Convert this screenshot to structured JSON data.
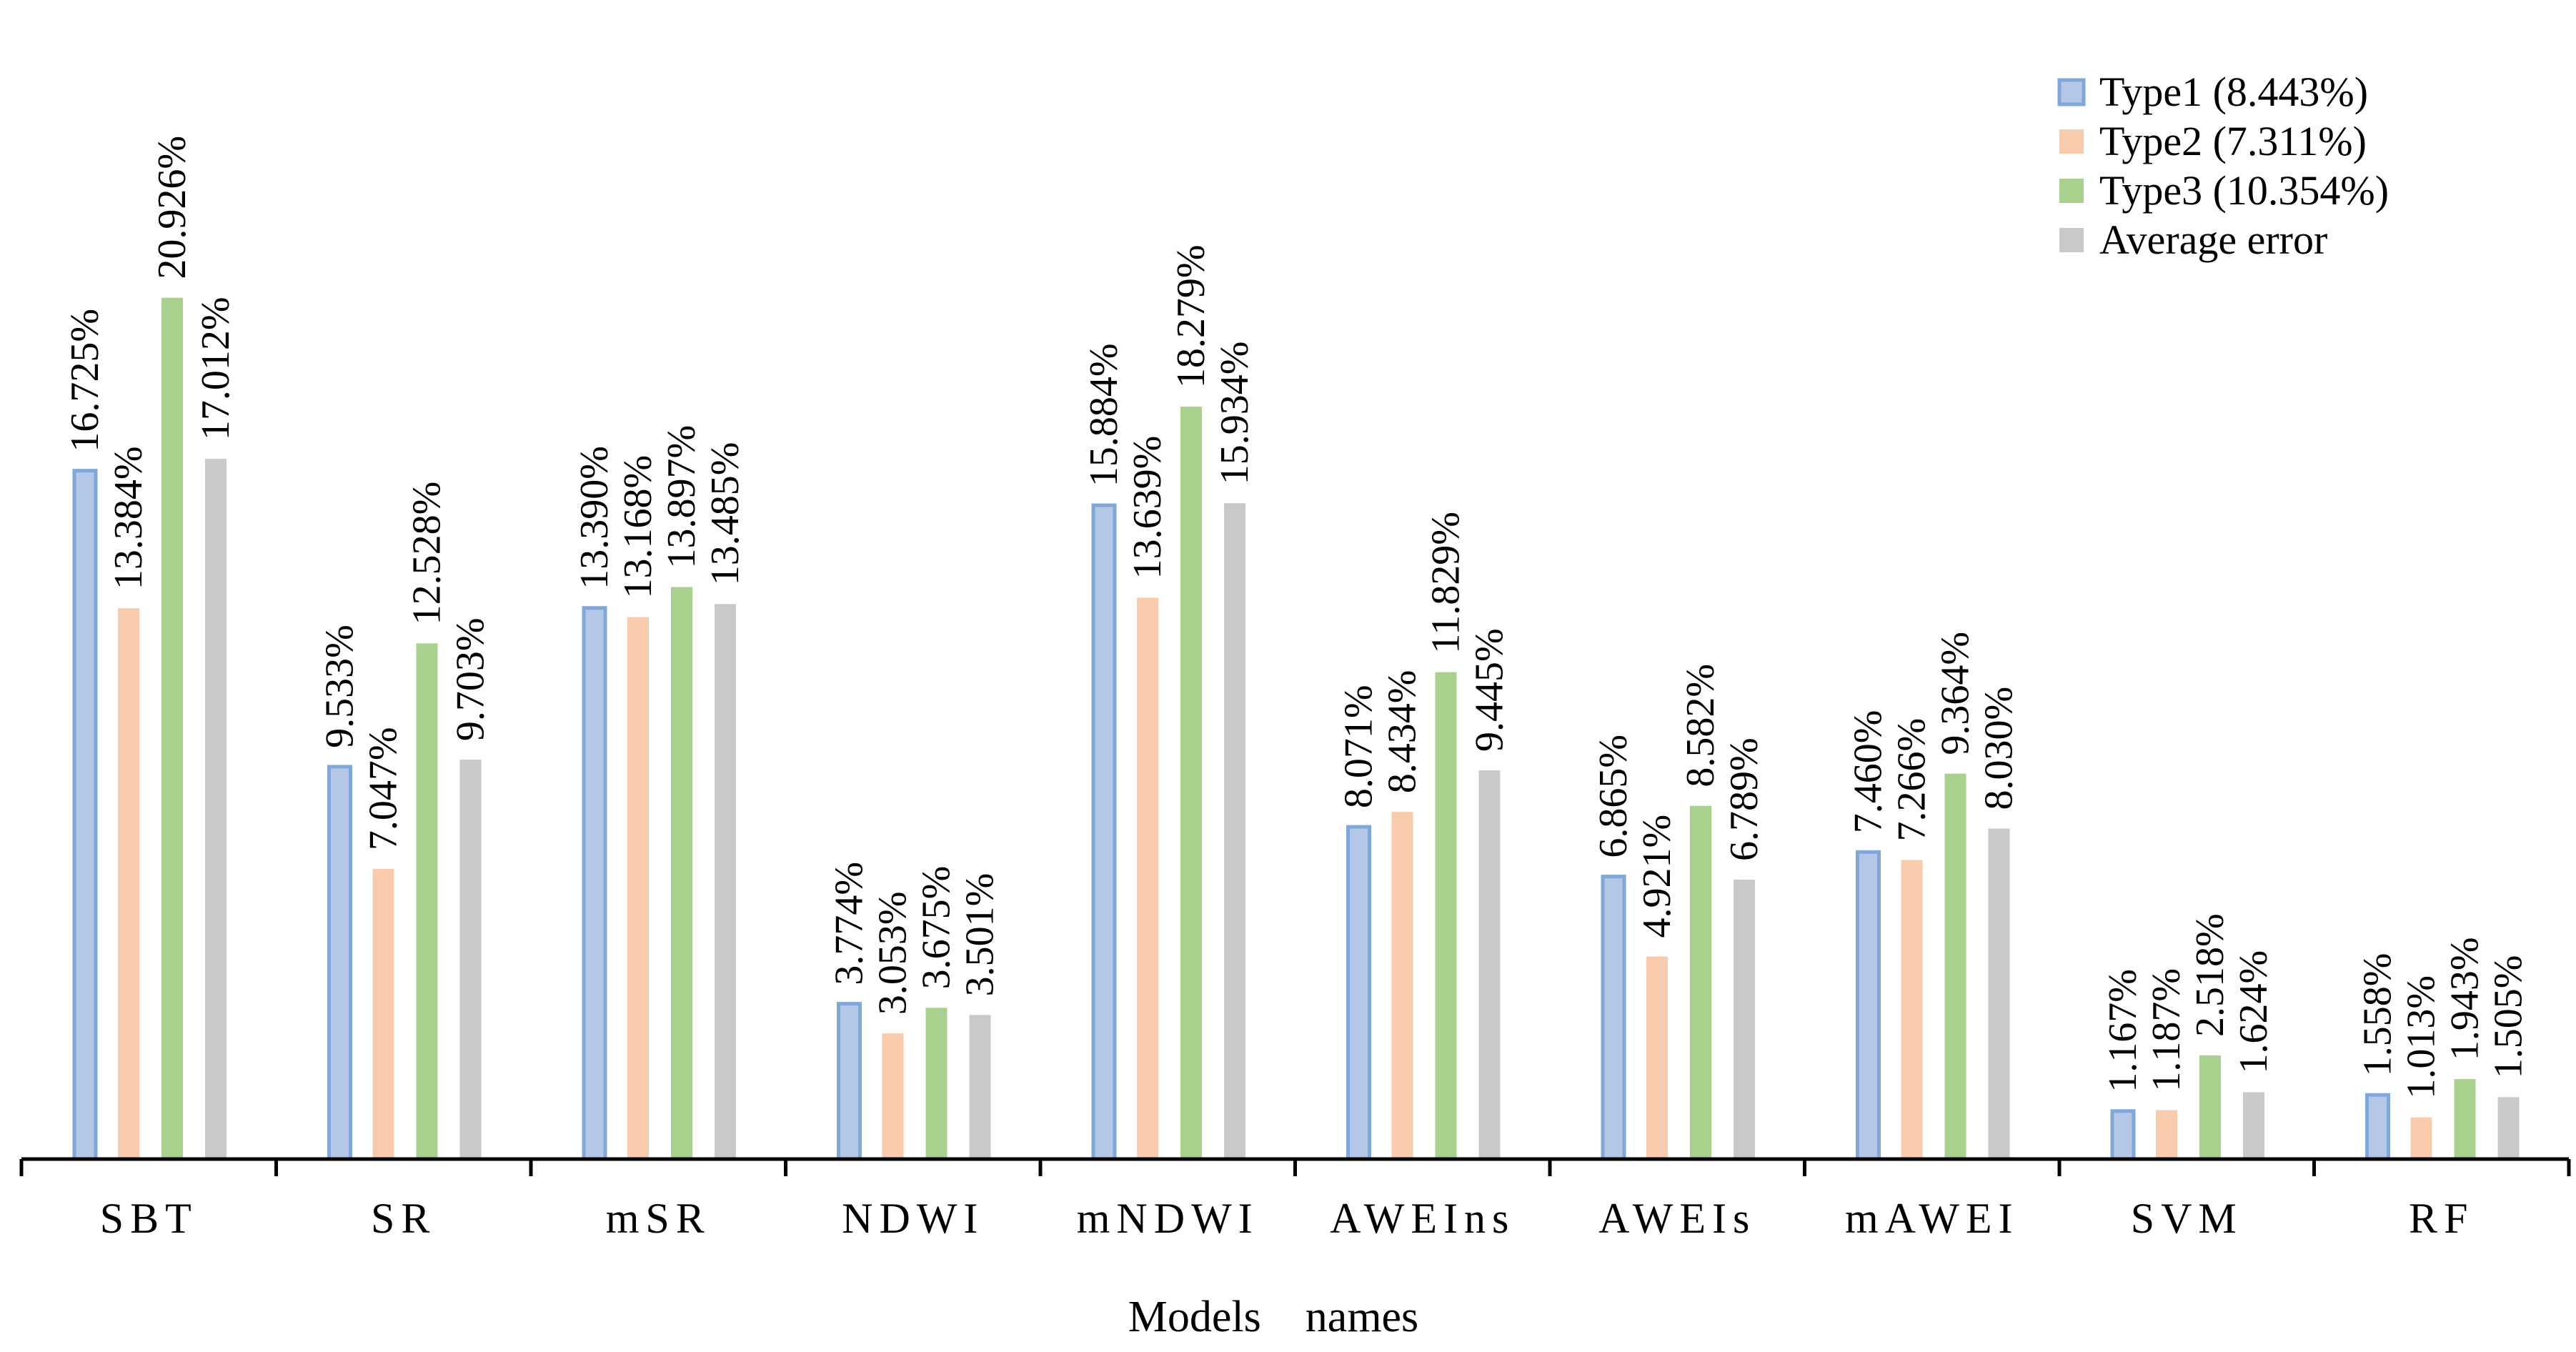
{
  "chart_data": {
    "type": "bar",
    "title": "",
    "xlabel": "Models    names",
    "ylabel": "",
    "ylim": [
      0,
      24
    ],
    "grid": false,
    "legend_position": "top-right",
    "categories": [
      "SBT",
      "SR",
      "mSR",
      "NDWI",
      "mNDWI",
      "AWEIns",
      "AWEIs",
      "mAWEI",
      "SVM",
      "RF"
    ],
    "series": [
      {
        "name": "Type1 (8.443%)",
        "color_fill": "#b4c7e7",
        "color_edge": "#7fa7d9",
        "values": [
          16.725,
          9.533,
          13.39,
          3.774,
          15.884,
          8.071,
          6.865,
          7.46,
          1.167,
          1.558
        ],
        "labels": [
          "16.725%",
          "9.533%",
          "13.390%",
          "3.774%",
          "15.884%",
          "8.071%",
          "6.865%",
          "7.460%",
          "1.167%",
          "1.558%"
        ]
      },
      {
        "name": "Type2 (7.311%)",
        "color_fill": "#f8cbad",
        "color_edge": "#f8cbad",
        "values": [
          13.384,
          7.047,
          13.168,
          3.053,
          13.639,
          8.434,
          4.921,
          7.266,
          1.187,
          1.013
        ],
        "labels": [
          "13.384%",
          "7.047%",
          "13.168%",
          "3.053%",
          "13.639%",
          "8.434%",
          "4.921%",
          "7.266%",
          "1.187%",
          "1.013%"
        ]
      },
      {
        "name": "Type3 (10.354%)",
        "color_fill": "#a9d18e",
        "color_edge": "#a9d18e",
        "values": [
          20.926,
          12.528,
          13.897,
          3.675,
          18.279,
          11.829,
          8.582,
          9.364,
          2.518,
          1.943
        ],
        "labels": [
          "20.926%",
          "12.528%",
          "13.897%",
          "3.675%",
          "18.279%",
          "11.829%",
          "8.582%",
          "9.364%",
          "2.518%",
          "1.943%"
        ]
      },
      {
        "name": "Average error",
        "color_fill": "#c9c9c9",
        "color_edge": "#c9c9c9",
        "values": [
          17.012,
          9.703,
          13.485,
          3.501,
          15.934,
          9.445,
          6.789,
          8.03,
          1.624,
          1.505
        ],
        "labels": [
          "17.012%",
          "9.703%",
          "13.485%",
          "3.501%",
          "15.934%",
          "9.445%",
          "6.789%",
          "8.030%",
          "1.624%",
          "1.505%"
        ]
      }
    ]
  }
}
